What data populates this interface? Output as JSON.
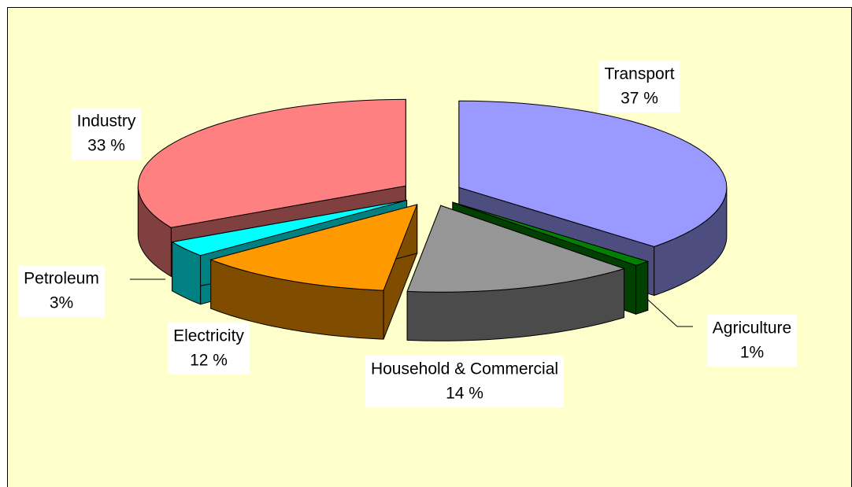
{
  "chart_data": {
    "type": "pie",
    "categories": [
      "Transport",
      "Agriculture",
      "Household & Commercial",
      "Electricity",
      "Petroleum",
      "Industry"
    ],
    "values": [
      37,
      1,
      14,
      12,
      3,
      33
    ],
    "value_labels": [
      "37 %",
      "1%",
      "14 %",
      "12 %",
      "3%",
      "33 %"
    ],
    "colors": [
      "#9999ff",
      "#008000",
      "#969696",
      "#ff9900",
      "#00ffff",
      "#ff8080"
    ]
  }
}
